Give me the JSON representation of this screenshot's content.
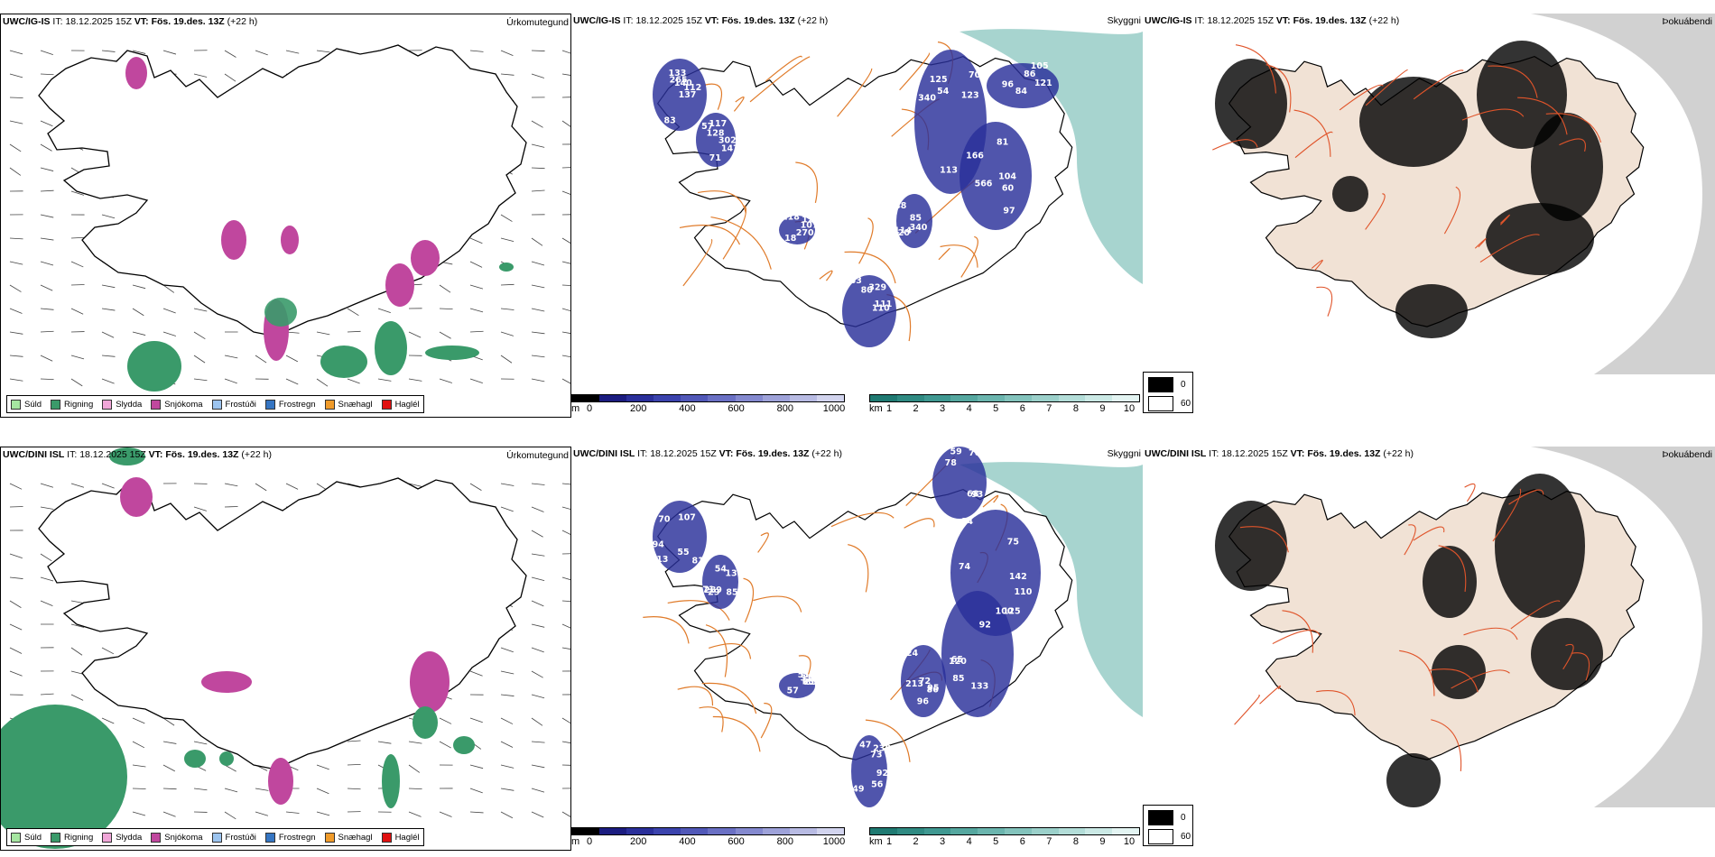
{
  "rows": [
    {
      "model": "UWC/IG-IS",
      "it_label": "IT:",
      "it_value": "18.12.2025 15Z",
      "vt_label": "VT:",
      "vt_value": "Fös. 19.des. 13Z",
      "lead": "(+22 h)",
      "panels": {
        "precip": {
          "title": "Úrkomutegund"
        },
        "cloud": {
          "title": "Skyggni",
          "labels": [
            "140",
            "302",
            "125",
            "166",
            "340",
            "270",
            "329",
            "121",
            "112",
            "117",
            "123",
            "104",
            "114",
            "107",
            "111",
            "86",
            "133",
            "128",
            "113",
            "97",
            "120",
            "125",
            "133",
            "105",
            "265",
            "147",
            "340",
            "566",
            "85",
            "118",
            "110",
            "96",
            "137",
            "57",
            "54",
            "81",
            "48",
            "18",
            "80",
            "84",
            "83",
            "71",
            "70",
            "60"
          ]
        },
        "dew": {
          "title": "Þokuábendi"
        }
      }
    },
    {
      "model": "UWC/DINI ISL",
      "it_label": "IT:",
      "it_value": "18.12.2025 15Z",
      "vt_label": "VT:",
      "vt_value": "Fös. 19.des. 13Z",
      "lead": "(+22 h)",
      "panels": {
        "precip": {
          "title": "Úrkomutegund"
        },
        "cloud": {
          "title": "Skyggni",
          "labels": [
            "107",
            "139",
            "125",
            "133",
            "213",
            "232",
            "92",
            "70",
            "313",
            "289",
            "84",
            "85",
            "86",
            "57",
            "73",
            "68",
            "81",
            "71",
            "75",
            "65",
            "72",
            "65",
            "47",
            "59",
            "55",
            "85",
            "74",
            "120",
            "124",
            "31",
            "238",
            "78",
            "94",
            "29",
            "142",
            "100",
            "96",
            "85",
            "149",
            "93",
            "70",
            "54",
            "110",
            "92",
            "95",
            "51",
            "56"
          ]
        },
        "dew": {
          "title": "Þokuábendi"
        }
      }
    }
  ],
  "precip_legend": [
    {
      "label": "Súld",
      "color": "#a6e6a1"
    },
    {
      "label": "Rigning",
      "color": "#3a9a6a"
    },
    {
      "label": "Slydda",
      "color": "#f0a6d8"
    },
    {
      "label": "Snjókoma",
      "color": "#c0479e"
    },
    {
      "label": "Frostúði",
      "color": "#9cc4ef"
    },
    {
      "label": "Frostregn",
      "color": "#3575c2"
    },
    {
      "label": "Snæhagl",
      "color": "#f09b2a"
    },
    {
      "label": "Haglél",
      "color": "#e01010"
    }
  ],
  "cloud_base_bar": {
    "unit": "m",
    "ticks": [
      "0",
      "200",
      "400",
      "600",
      "800",
      "1000"
    ],
    "colors": [
      "#000000",
      "#1b1c80",
      "#2a2f9a",
      "#3b43ad",
      "#5158b8",
      "#6a70c4",
      "#8489cf",
      "#9ea2d9",
      "#b8bbe3",
      "#d2d4ee"
    ]
  },
  "visibility_bar": {
    "unit": "km",
    "ticks": [
      "1",
      "2",
      "3",
      "4",
      "5",
      "6",
      "7",
      "8",
      "9",
      "10"
    ],
    "colors": [
      "#1f7a72",
      "#2f8a82",
      "#3f9891",
      "#55a79f",
      "#6bb5ae",
      "#83c3bc",
      "#9bd0ca",
      "#b3ddd8",
      "#cbe9e5",
      "#e3f4f2"
    ]
  },
  "fog_legend": [
    {
      "label": "0",
      "color": "#000000"
    },
    {
      "label": "60",
      "color": "#ffffff"
    }
  ],
  "colors": {
    "rain": "#3a9a6a",
    "snow": "#c0479e",
    "cloud_blue": "#2a2f9a",
    "visibility_teal": "#5fb0a8",
    "road_orange": "#e07b2a",
    "land_tint": "#f1e2d5"
  }
}
